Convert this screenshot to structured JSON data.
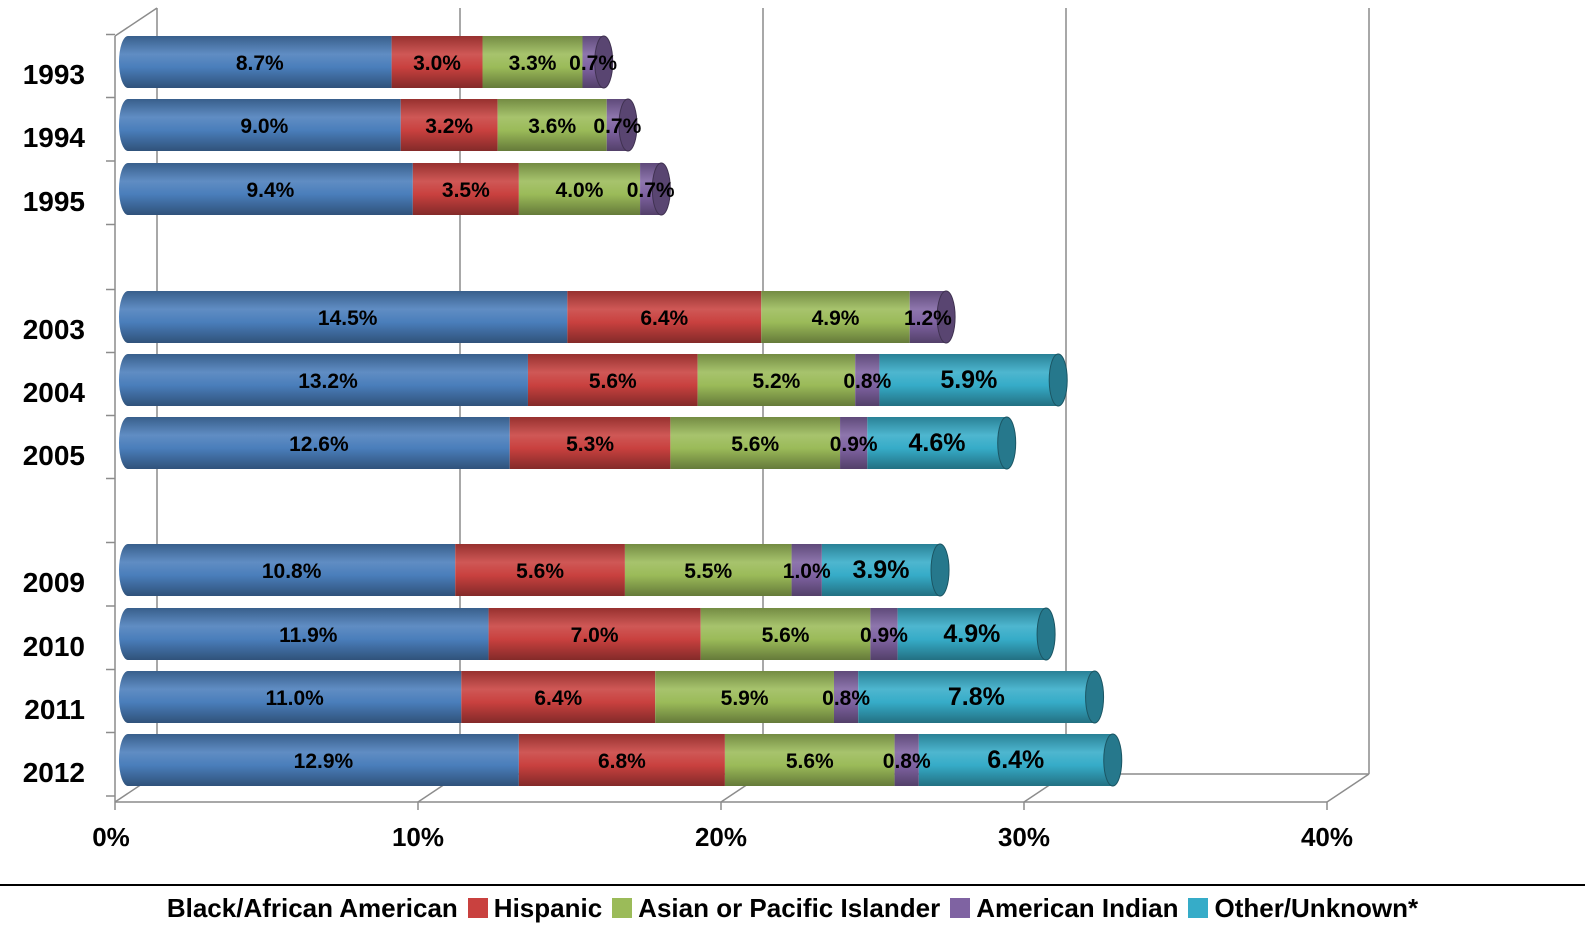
{
  "chart_data": {
    "type": "bar",
    "orientation": "horizontal",
    "stacked": true,
    "categories": [
      "1993",
      "1994",
      "1995",
      "2003",
      "2004",
      "2005",
      "2009",
      "2010",
      "2011",
      "2012"
    ],
    "series": [
      {
        "name": "Black/African American",
        "color": "#4a7ebb",
        "values": [
          8.7,
          9.0,
          9.4,
          14.5,
          13.2,
          12.6,
          10.8,
          11.9,
          11.0,
          12.9
        ],
        "labels": [
          "8.7%",
          "9.0%",
          "9.4%",
          "14.5%",
          "13.2%",
          "12.6%",
          "10.8%",
          "11.9%",
          "11.0%",
          "12.9%"
        ]
      },
      {
        "name": "Hispanic",
        "color": "#c9413f",
        "values": [
          3.0,
          3.2,
          3.5,
          6.4,
          5.6,
          5.3,
          5.6,
          7.0,
          6.4,
          6.8
        ],
        "labels": [
          "3.0%",
          "3.2%",
          "3.5%",
          "6.4%",
          "5.6%",
          "5.3%",
          "5.6%",
          "7.0%",
          "6.4%",
          "6.8%"
        ]
      },
      {
        "name": "Asian or Pacific Islander",
        "color": "#9bbb59",
        "values": [
          3.3,
          3.6,
          4.0,
          4.9,
          5.2,
          5.6,
          5.5,
          5.6,
          5.9,
          5.6
        ],
        "labels": [
          "3.3%",
          "3.6%",
          "4.0%",
          "4.9%",
          "5.2%",
          "5.6%",
          "5.5%",
          "5.6%",
          "5.9%",
          "5.6%"
        ]
      },
      {
        "name": "American Indian",
        "color": "#7f63a2",
        "values": [
          0.7,
          0.7,
          0.7,
          1.2,
          0.8,
          0.9,
          1.0,
          0.9,
          0.8,
          0.8
        ],
        "labels": [
          "0.7%",
          "0.7%",
          "0.7%",
          "1.2%",
          "0.8%",
          "0.9%",
          "1.0%",
          "0.9%",
          "0.8%",
          "0.8%"
        ]
      },
      {
        "name": "Other/Unknown*",
        "color": "#36acc8",
        "values": [
          0,
          0,
          0,
          0,
          5.9,
          4.6,
          3.9,
          4.9,
          7.8,
          6.4
        ],
        "labels": [
          "",
          "",
          "",
          "",
          "5.9%",
          "4.6%",
          "3.9%",
          "4.9%",
          "7.8%",
          "6.4%"
        ]
      }
    ],
    "xlim": [
      0,
      40
    ],
    "xticks": [
      "0%",
      "10%",
      "20%",
      "30%",
      "40%"
    ],
    "grid": true,
    "legend_position": "bottom",
    "title": "",
    "xlabel": "",
    "ylabel": ""
  }
}
